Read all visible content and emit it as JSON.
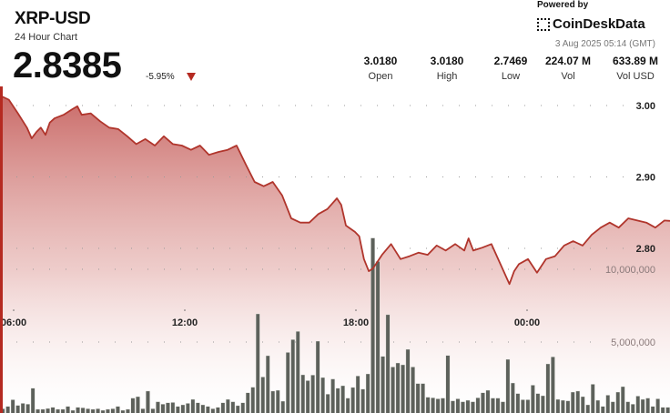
{
  "header": {
    "symbol": "XRP-USD",
    "subtitle": "24 Hour Chart",
    "price": "2.8385",
    "change": "-5.95%",
    "change_direction": "down",
    "down_color": "#b52a21",
    "stats": [
      {
        "value": "3.0180",
        "label": "Open"
      },
      {
        "value": "3.0180",
        "label": "High"
      },
      {
        "value": "2.7469",
        "label": "Low"
      },
      {
        "value": "224.07 M",
        "label": "Vol"
      },
      {
        "value": "633.89 M",
        "label": "Vol USD"
      }
    ],
    "powered_by": "Powered by",
    "brand": "CoinDeskData",
    "timestamp": "3 Aug 2025 05:14 (GMT)"
  },
  "chart_data": {
    "type": "line",
    "line_color": "#b0352c",
    "fill_color": "#c0504d",
    "bar_color": "#5d615b",
    "grid": true,
    "x_ticks": [
      "06:00",
      "12:00",
      "18:00",
      "00:00"
    ],
    "price_axis": {
      "ticks": [
        "3.00",
        "2.90",
        "2.80"
      ],
      "tick_values": [
        3.0,
        2.9,
        2.8
      ]
    },
    "volume_axis": {
      "ticks": [
        "10,000,000",
        "5,000,000"
      ],
      "tick_values": [
        10000000,
        5000000
      ]
    },
    "price_series": [
      [
        "05:31",
        3.014
      ],
      [
        "05:50",
        3.008
      ],
      [
        "06:09",
        2.989
      ],
      [
        "06:28",
        2.969
      ],
      [
        "06:38",
        2.954
      ],
      [
        "06:48",
        2.963
      ],
      [
        "06:57",
        2.969
      ],
      [
        "07:07",
        2.959
      ],
      [
        "07:16",
        2.976
      ],
      [
        "07:26",
        2.982
      ],
      [
        "07:45",
        2.987
      ],
      [
        "08:04",
        2.995
      ],
      [
        "08:14",
        2.999
      ],
      [
        "08:23",
        2.987
      ],
      [
        "08:42",
        2.989
      ],
      [
        "09:02",
        2.978
      ],
      [
        "09:21",
        2.969
      ],
      [
        "09:40",
        2.967
      ],
      [
        "09:59",
        2.957
      ],
      [
        "10:18",
        2.946
      ],
      [
        "10:37",
        2.953
      ],
      [
        "10:57",
        2.944
      ],
      [
        "11:16",
        2.957
      ],
      [
        "11:35",
        2.946
      ],
      [
        "11:54",
        2.944
      ],
      [
        "12:13",
        2.938
      ],
      [
        "12:32",
        2.944
      ],
      [
        "12:51",
        2.931
      ],
      [
        "13:11",
        2.935
      ],
      [
        "13:30",
        2.938
      ],
      [
        "13:49",
        2.944
      ],
      [
        "14:08",
        2.918
      ],
      [
        "14:27",
        2.893
      ],
      [
        "14:46",
        2.887
      ],
      [
        "15:05",
        2.893
      ],
      [
        "15:25",
        2.874
      ],
      [
        "15:44",
        2.842
      ],
      [
        "16:03",
        2.836
      ],
      [
        "16:22",
        2.836
      ],
      [
        "16:41",
        2.848
      ],
      [
        "17:00",
        2.855
      ],
      [
        "17:20",
        2.87
      ],
      [
        "17:29",
        2.861
      ],
      [
        "17:39",
        2.832
      ],
      [
        "17:58",
        2.823
      ],
      [
        "18:07",
        2.817
      ],
      [
        "18:17",
        2.785
      ],
      [
        "18:27",
        2.768
      ],
      [
        "18:36",
        2.772
      ],
      [
        "18:55",
        2.791
      ],
      [
        "19:14",
        2.806
      ],
      [
        "19:34",
        2.785
      ],
      [
        "19:53",
        2.789
      ],
      [
        "20:12",
        2.794
      ],
      [
        "20:31",
        2.791
      ],
      [
        "20:50",
        2.804
      ],
      [
        "21:09",
        2.797
      ],
      [
        "21:29",
        2.806
      ],
      [
        "21:48",
        2.797
      ],
      [
        "21:57",
        2.814
      ],
      [
        "22:07",
        2.797
      ],
      [
        "22:26",
        2.801
      ],
      [
        "22:45",
        2.806
      ],
      [
        "23:04",
        2.778
      ],
      [
        "23:23",
        2.75
      ],
      [
        "23:33",
        2.768
      ],
      [
        "23:43",
        2.778
      ],
      [
        "00:02",
        2.785
      ],
      [
        "00:21",
        2.766
      ],
      [
        "00:40",
        2.785
      ],
      [
        "00:59",
        2.789
      ],
      [
        "01:18",
        2.804
      ],
      [
        "01:37",
        2.81
      ],
      [
        "01:57",
        2.804
      ],
      [
        "02:16",
        2.819
      ],
      [
        "02:35",
        2.829
      ],
      [
        "02:54",
        2.836
      ],
      [
        "03:13",
        2.829
      ],
      [
        "03:33",
        2.842
      ],
      [
        "03:52",
        2.839
      ],
      [
        "04:11",
        2.836
      ],
      [
        "04:30",
        2.829
      ],
      [
        "04:49",
        2.839
      ],
      [
        "05:14",
        2.8385
      ]
    ],
    "volume_millions": [
      0.42,
      0.58,
      1.04,
      0.65,
      0.79,
      0.73,
      1.83,
      0.38,
      0.38,
      0.44,
      0.52,
      0.38,
      0.38,
      0.58,
      0.31,
      0.52,
      0.48,
      0.42,
      0.38,
      0.42,
      0.31,
      0.38,
      0.42,
      0.58,
      0.31,
      0.38,
      1.15,
      1.25,
      0.42,
      1.63,
      0.42,
      0.9,
      0.73,
      0.83,
      0.85,
      0.58,
      0.69,
      0.79,
      1.06,
      0.83,
      0.69,
      0.58,
      0.42,
      0.52,
      0.83,
      1.06,
      0.9,
      0.63,
      0.83,
      1.52,
      1.9,
      6.94,
      2.6,
      4.06,
      1.63,
      1.69,
      0.94,
      4.29,
      5.17,
      5.73,
      2.75,
      2.35,
      2.73,
      5.06,
      2.56,
      1.42,
      2.46,
      1.83,
      2.0,
      1.15,
      1.88,
      2.67,
      1.77,
      2.81,
      12.15,
      10.54,
      4.02,
      6.88,
      3.29,
      3.56,
      3.44,
      4.5,
      3.29,
      2.15,
      2.15,
      1.21,
      1.17,
      1.1,
      1.15,
      4.08,
      0.96,
      1.1,
      0.9,
      1.0,
      0.9,
      1.17,
      1.52,
      1.69,
      1.15,
      1.15,
      0.9,
      3.81,
      2.19,
      1.46,
      1.04,
      1.04,
      2.04,
      1.46,
      1.31,
      3.5,
      3.98,
      1.06,
      1.0,
      0.96,
      1.56,
      1.63,
      1.25,
      0.69,
      2.1,
      1.0,
      0.58,
      1.35,
      0.9,
      1.56,
      1.94,
      0.9,
      0.73,
      1.29,
      1.06,
      1.15,
      0.58,
      1.1,
      0.52,
      0.52
    ]
  }
}
